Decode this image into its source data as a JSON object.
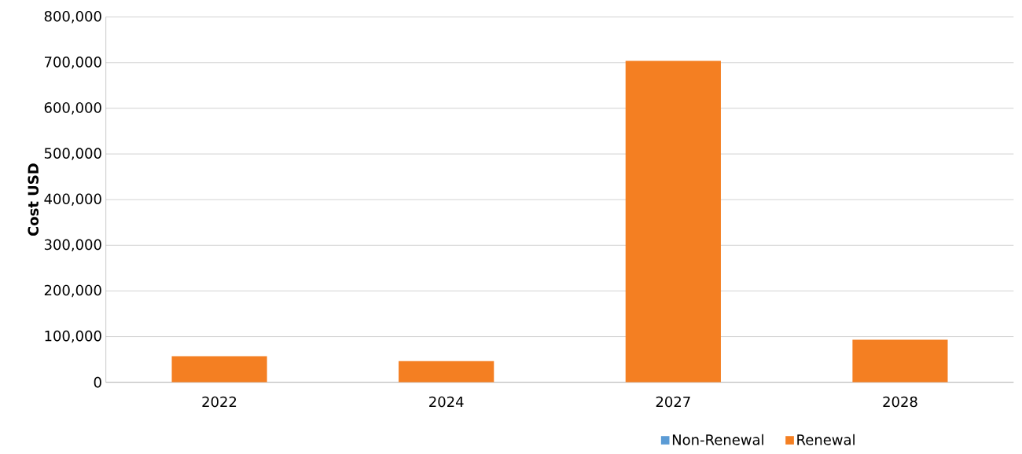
{
  "chart_data": {
    "type": "bar",
    "ylabel": "Cost USD",
    "stacked": true,
    "categories": [
      "2022",
      "2024",
      "2027",
      "2028"
    ],
    "series": [
      {
        "name": "Non-Renewal",
        "color": "#5b9bd5",
        "values": [
          0,
          0,
          0,
          0
        ]
      },
      {
        "name": "Renewal",
        "color": "#f47f22",
        "values": [
          57000,
          46500,
          704000,
          93000
        ]
      }
    ],
    "ylim": [
      0,
      800000
    ],
    "yticks": [
      0,
      {
        "value": 100000,
        "label": "100,000"
      },
      {
        "value": 200000,
        "label": "200,000"
      },
      {
        "value": 300000,
        "label": "300,000"
      },
      {
        "value": 400000,
        "label": "400,000"
      },
      {
        "value": 500000,
        "label": "500,000"
      },
      {
        "value": 600000,
        "label": "600,000"
      },
      {
        "value": 700000,
        "label": "700,000"
      },
      {
        "value": 800000,
        "label": "800,000"
      }
    ],
    "grid": "y",
    "legend": "bottom"
  }
}
